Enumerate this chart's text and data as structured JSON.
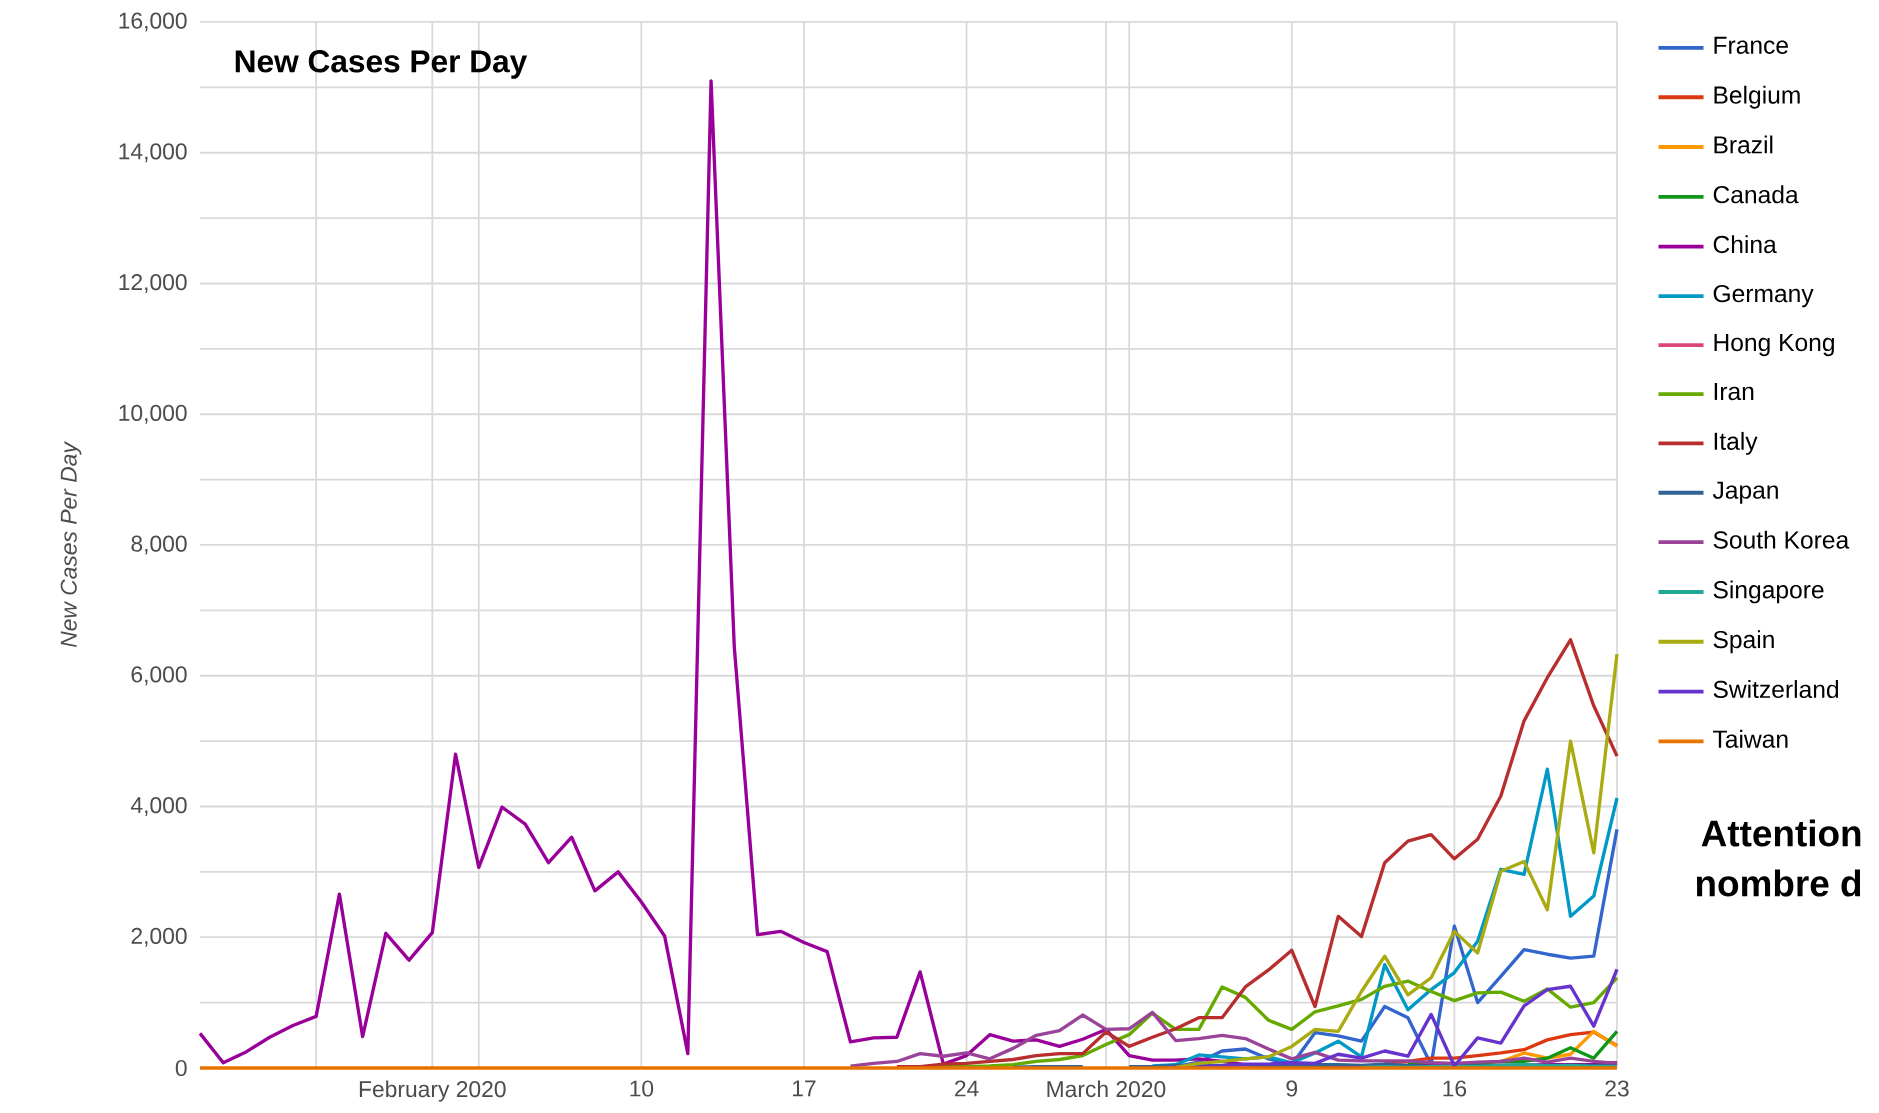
{
  "chart_data": {
    "type": "line",
    "title": "New Cases Per Day",
    "ylabel": "New Cases Per Day",
    "annotations": [
      "Attention",
      "nombre d"
    ],
    "x": [
      "2020-01-22",
      "2020-01-23",
      "2020-01-24",
      "2020-01-25",
      "2020-01-26",
      "2020-01-27",
      "2020-01-28",
      "2020-01-29",
      "2020-01-30",
      "2020-01-31",
      "2020-02-01",
      "2020-02-02",
      "2020-02-03",
      "2020-02-04",
      "2020-02-05",
      "2020-02-06",
      "2020-02-07",
      "2020-02-08",
      "2020-02-09",
      "2020-02-10",
      "2020-02-11",
      "2020-02-12",
      "2020-02-13",
      "2020-02-14",
      "2020-02-15",
      "2020-02-16",
      "2020-02-17",
      "2020-02-18",
      "2020-02-19",
      "2020-02-20",
      "2020-02-21",
      "2020-02-22",
      "2020-02-23",
      "2020-02-24",
      "2020-02-25",
      "2020-02-26",
      "2020-02-27",
      "2020-02-28",
      "2020-02-29",
      "2020-03-01",
      "2020-03-02",
      "2020-03-03",
      "2020-03-04",
      "2020-03-05",
      "2020-03-06",
      "2020-03-07",
      "2020-03-08",
      "2020-03-09",
      "2020-03-10",
      "2020-03-11",
      "2020-03-12",
      "2020-03-13",
      "2020-03-14",
      "2020-03-15",
      "2020-03-16",
      "2020-03-17",
      "2020-03-18",
      "2020-03-19",
      "2020-03-20",
      "2020-03-21",
      "2020-03-22",
      "2020-03-23"
    ],
    "series": [
      {
        "name": "France",
        "color": "#3366cc",
        "values": [
          null,
          null,
          null,
          null,
          null,
          null,
          null,
          null,
          null,
          null,
          null,
          null,
          null,
          null,
          null,
          null,
          null,
          null,
          null,
          null,
          null,
          null,
          null,
          null,
          null,
          null,
          null,
          null,
          null,
          null,
          null,
          null,
          null,
          null,
          null,
          null,
          null,
          null,
          null,
          null,
          null,
          20,
          20,
          90,
          260,
          290,
          140,
          50,
          540,
          490,
          410,
          940,
          770,
          50,
          2170,
          1000,
          1400,
          1810,
          1740,
          1680,
          1710,
          3650
        ]
      },
      {
        "name": "Belgium",
        "color": "#dc3912",
        "values": [
          null,
          null,
          null,
          null,
          null,
          null,
          null,
          null,
          null,
          null,
          null,
          null,
          null,
          null,
          null,
          null,
          null,
          null,
          null,
          null,
          null,
          null,
          null,
          null,
          null,
          null,
          null,
          null,
          null,
          null,
          null,
          null,
          null,
          null,
          null,
          null,
          null,
          null,
          null,
          null,
          null,
          null,
          null,
          null,
          null,
          null,
          null,
          null,
          null,
          null,
          null,
          80,
          100,
          150,
          150,
          190,
          230,
          280,
          430,
          510,
          550,
          340
        ]
      },
      {
        "name": "Brazil",
        "color": "#ff9900",
        "values": [
          null,
          null,
          null,
          null,
          null,
          null,
          null,
          null,
          null,
          null,
          null,
          null,
          null,
          null,
          null,
          null,
          null,
          null,
          null,
          null,
          null,
          null,
          null,
          null,
          null,
          null,
          null,
          null,
          null,
          null,
          null,
          null,
          null,
          null,
          null,
          null,
          null,
          null,
          null,
          null,
          null,
          null,
          null,
          null,
          null,
          null,
          null,
          null,
          null,
          null,
          null,
          null,
          20,
          50,
          30,
          60,
          100,
          230,
          150,
          210,
          560,
          330
        ]
      },
      {
        "name": "Canada",
        "color": "#109618",
        "values": [
          null,
          null,
          null,
          null,
          null,
          null,
          null,
          null,
          null,
          null,
          null,
          null,
          null,
          null,
          null,
          null,
          null,
          null,
          null,
          null,
          null,
          null,
          null,
          null,
          null,
          null,
          null,
          null,
          null,
          null,
          null,
          null,
          null,
          null,
          null,
          null,
          null,
          null,
          null,
          null,
          null,
          null,
          null,
          null,
          null,
          null,
          null,
          null,
          null,
          null,
          null,
          null,
          50,
          60,
          30,
          70,
          100,
          100,
          150,
          310,
          150,
          560
        ]
      },
      {
        "name": "China",
        "color": "#990099",
        "values": [
          530,
          80,
          250,
          470,
          650,
          790,
          2660,
          480,
          2060,
          1650,
          2070,
          4800,
          3070,
          3990,
          3730,
          3140,
          3530,
          2710,
          3000,
          2540,
          2020,
          220,
          15100,
          6440,
          2040,
          2090,
          1920,
          1780,
          400,
          460,
          470,
          1470,
          60,
          190,
          510,
          410,
          430,
          330,
          440,
          590,
          190,
          120,
          120,
          140,
          100,
          50,
          40,
          20,
          20,
          30,
          10,
          10,
          30,
          30,
          20,
          20,
          40,
          40,
          50,
          50,
          50,
          80
        ]
      },
      {
        "name": "Germany",
        "color": "#0099c6",
        "values": [
          null,
          null,
          null,
          null,
          null,
          null,
          null,
          null,
          null,
          null,
          null,
          null,
          null,
          null,
          null,
          null,
          null,
          null,
          null,
          null,
          null,
          null,
          null,
          null,
          null,
          null,
          null,
          null,
          null,
          null,
          null,
          null,
          null,
          null,
          null,
          null,
          null,
          null,
          null,
          null,
          null,
          30,
          50,
          200,
          170,
          140,
          170,
          80,
          230,
          410,
          170,
          1580,
          890,
          1200,
          1460,
          1940,
          3040,
          2960,
          4570,
          2320,
          2630,
          4130
        ]
      },
      {
        "name": "Hong Kong",
        "color": "#dd4477",
        "values": [
          null,
          null,
          null,
          null,
          null,
          null,
          null,
          null,
          null,
          null,
          null,
          null,
          null,
          null,
          null,
          null,
          null,
          null,
          null,
          null,
          null,
          null,
          null,
          null,
          null,
          null,
          null,
          null,
          null,
          null,
          null,
          null,
          null,
          null,
          null,
          null,
          null,
          null,
          null,
          null,
          null,
          null,
          null,
          null,
          null,
          null,
          null,
          null,
          null,
          null,
          null,
          null,
          null,
          null,
          null,
          null,
          null,
          null,
          null,
          null,
          null,
          null
        ]
      },
      {
        "name": "Iran",
        "color": "#66aa00",
        "values": [
          null,
          null,
          null,
          null,
          null,
          null,
          null,
          null,
          null,
          null,
          null,
          null,
          null,
          null,
          null,
          null,
          null,
          null,
          null,
          null,
          null,
          null,
          null,
          null,
          null,
          null,
          null,
          null,
          null,
          null,
          10,
          10,
          20,
          20,
          30,
          50,
          100,
          130,
          190,
          360,
          510,
          840,
          590,
          590,
          1240,
          1080,
          730,
          590,
          860,
          950,
          1050,
          1250,
          1330,
          1170,
          1030,
          1150,
          1160,
          1020,
          1210,
          930,
          1000,
          1380
        ]
      },
      {
        "name": "Italy",
        "color": "#b82e2e",
        "values": [
          null,
          null,
          null,
          null,
          null,
          null,
          null,
          null,
          null,
          null,
          null,
          null,
          null,
          null,
          null,
          null,
          null,
          null,
          null,
          null,
          null,
          null,
          null,
          null,
          null,
          null,
          null,
          null,
          null,
          null,
          20,
          20,
          60,
          70,
          100,
          130,
          190,
          220,
          220,
          550,
          330,
          470,
          600,
          770,
          770,
          1240,
          1500,
          1800,
          940,
          2320,
          2010,
          3140,
          3470,
          3570,
          3200,
          3500,
          4160,
          5310,
          5970,
          6550,
          5540,
          4770
        ]
      },
      {
        "name": "Japan",
        "color": "#316395",
        "values": [
          null,
          null,
          null,
          null,
          null,
          null,
          null,
          null,
          null,
          null,
          null,
          null,
          null,
          null,
          null,
          null,
          null,
          null,
          null,
          null,
          null,
          null,
          null,
          null,
          null,
          null,
          null,
          null,
          null,
          null,
          null,
          null,
          null,
          null,
          null,
          10,
          20,
          20,
          20,
          null,
          20,
          20,
          40,
          30,
          40,
          50,
          40,
          30,
          50,
          50,
          40,
          60,
          40,
          20,
          30,
          30,
          40,
          40,
          40,
          40,
          40,
          40
        ]
      },
      {
        "name": "South Korea",
        "color": "#994499",
        "values": [
          null,
          null,
          null,
          null,
          null,
          null,
          null,
          null,
          null,
          null,
          null,
          null,
          null,
          null,
          null,
          null,
          null,
          null,
          null,
          null,
          null,
          null,
          null,
          null,
          null,
          null,
          null,
          null,
          30,
          70,
          100,
          220,
          180,
          230,
          140,
          300,
          500,
          570,
          810,
          590,
          600,
          850,
          420,
          450,
          500,
          450,
          290,
          140,
          240,
          120,
          110,
          110,
          110,
          80,
          70,
          90,
          100,
          150,
          90,
          150,
          100,
          70
        ]
      },
      {
        "name": "Singapore",
        "color": "#22aa99",
        "values": [
          null,
          null,
          null,
          null,
          null,
          null,
          null,
          null,
          null,
          null,
          null,
          null,
          null,
          null,
          null,
          null,
          null,
          null,
          null,
          null,
          null,
          null,
          null,
          null,
          null,
          null,
          null,
          null,
          null,
          null,
          null,
          null,
          null,
          null,
          null,
          null,
          null,
          null,
          null,
          null,
          null,
          null,
          null,
          null,
          null,
          null,
          null,
          null,
          null,
          null,
          10,
          20,
          10,
          20,
          20,
          20,
          40,
          50,
          30,
          40,
          20,
          20
        ]
      },
      {
        "name": "Spain",
        "color": "#aaaa11",
        "values": [
          null,
          null,
          null,
          null,
          null,
          null,
          null,
          null,
          null,
          null,
          null,
          null,
          null,
          null,
          null,
          null,
          null,
          null,
          null,
          null,
          null,
          null,
          null,
          null,
          null,
          null,
          null,
          null,
          null,
          null,
          null,
          null,
          null,
          null,
          null,
          null,
          null,
          null,
          null,
          null,
          null,
          null,
          10,
          70,
          100,
          140,
          170,
          330,
          590,
          560,
          1170,
          1710,
          1120,
          1380,
          2090,
          1760,
          3010,
          3160,
          2420,
          5000,
          3290,
          6330
        ]
      },
      {
        "name": "Switzerland",
        "color": "#6633cc",
        "values": [
          null,
          null,
          null,
          null,
          null,
          null,
          null,
          null,
          null,
          null,
          null,
          null,
          null,
          null,
          null,
          null,
          null,
          null,
          null,
          null,
          null,
          null,
          null,
          null,
          null,
          null,
          null,
          null,
          null,
          null,
          null,
          null,
          null,
          null,
          null,
          null,
          null,
          null,
          null,
          null,
          null,
          null,
          null,
          20,
          30,
          60,
          60,
          80,
          70,
          210,
          150,
          260,
          180,
          820,
          30,
          460,
          380,
          950,
          1200,
          1250,
          640,
          1510
        ]
      },
      {
        "name": "Taiwan",
        "color": "#e67300",
        "values": [
          0,
          0,
          0,
          0,
          0,
          0,
          0,
          0,
          0,
          0,
          0,
          0,
          0,
          0,
          0,
          0,
          0,
          0,
          0,
          0,
          0,
          0,
          0,
          0,
          0,
          0,
          0,
          0,
          0,
          0,
          0,
          0,
          0,
          0,
          0,
          0,
          0,
          0,
          0,
          0,
          0,
          0,
          0,
          0,
          0,
          0,
          0,
          0,
          0,
          0,
          0,
          0,
          0,
          0,
          0,
          0,
          0,
          0,
          0,
          0,
          0,
          0
        ]
      }
    ],
    "xlim": [
      "2020-01-22",
      "2020-03-23"
    ],
    "xticks": [
      {
        "value": "2020-01-27",
        "label": null
      },
      {
        "value": "2020-02-01",
        "label": "February 2020"
      },
      {
        "value": "2020-02-03",
        "label": null
      },
      {
        "value": "2020-02-10",
        "label": "10"
      },
      {
        "value": "2020-02-17",
        "label": "17"
      },
      {
        "value": "2020-02-24",
        "label": "24"
      },
      {
        "value": "2020-03-01",
        "label": "March 2020"
      },
      {
        "value": "2020-03-02",
        "label": null
      },
      {
        "value": "2020-03-09",
        "label": "9"
      },
      {
        "value": "2020-03-16",
        "label": "16"
      },
      {
        "value": "2020-03-23",
        "label": "23"
      }
    ],
    "ylim": [
      0,
      16000
    ],
    "yticks": [
      0,
      {
        "value": 1000,
        "label": null
      },
      {
        "value": 2000,
        "label": "2,000"
      },
      {
        "value": 3000,
        "label": null
      },
      {
        "value": 4000,
        "label": "4,000"
      },
      {
        "value": 5000,
        "label": null
      },
      {
        "value": 6000,
        "label": "6,000"
      },
      {
        "value": 7000,
        "label": null
      },
      {
        "value": 8000,
        "label": "8,000"
      },
      {
        "value": 9000,
        "label": null
      },
      {
        "value": 10000,
        "label": "10,000"
      },
      {
        "value": 11000,
        "label": null
      },
      {
        "value": 12000,
        "label": "12,000"
      },
      {
        "value": 13000,
        "label": null
      },
      {
        "value": 14000,
        "label": "14,000"
      },
      {
        "value": 15000,
        "label": null
      },
      {
        "value": 16000,
        "label": "16,000"
      }
    ],
    "grid": true,
    "legend": "right",
    "marker": "none",
    "line_style": "solid"
  }
}
